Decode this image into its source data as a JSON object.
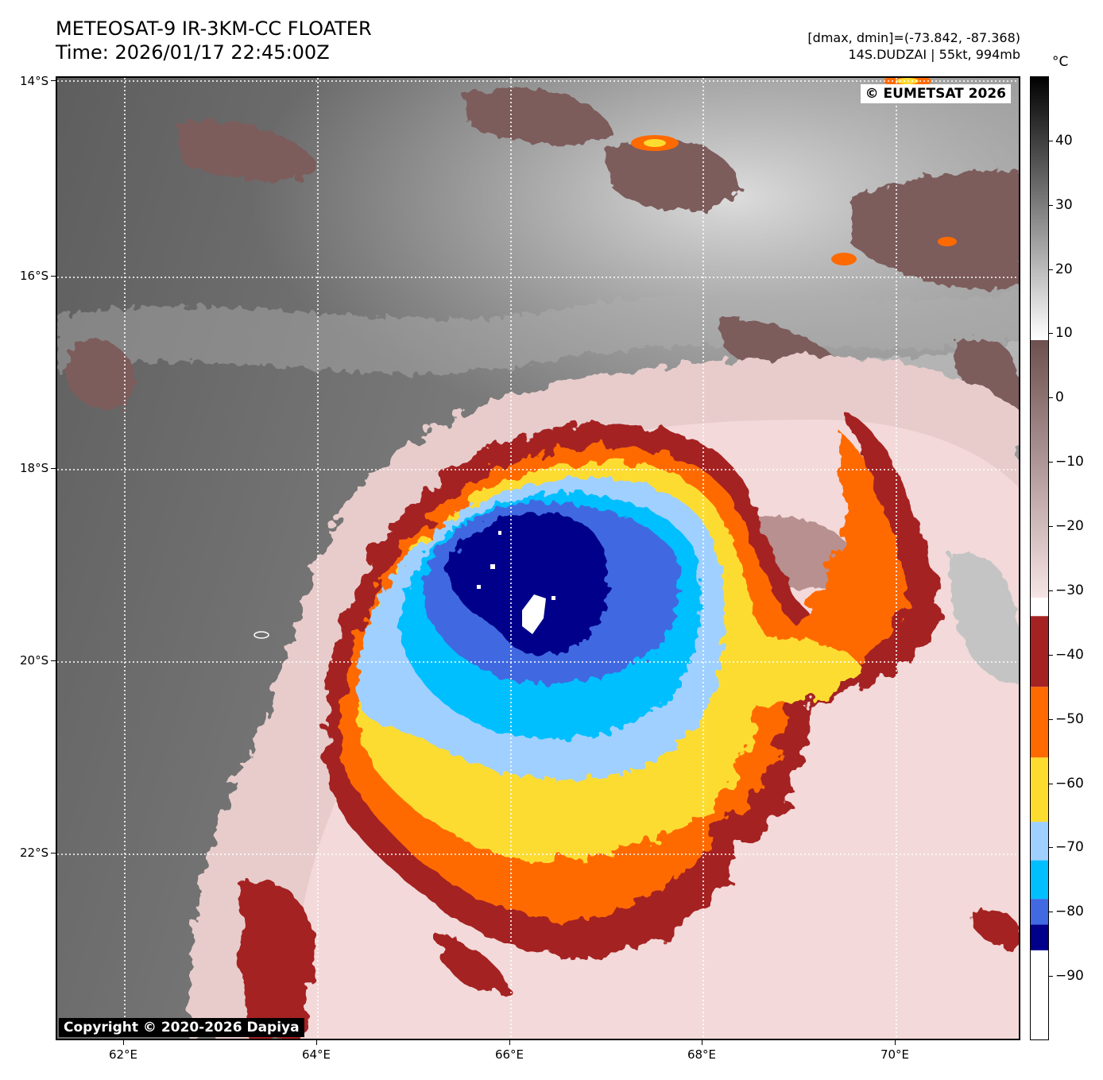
{
  "header": {
    "title": "METEOSAT-9 IR-3KM-CC FLOATER",
    "time": "Time: 2026/01/17 22:45:00Z",
    "range": "[dmax, dmin]=(-73.842, -87.368)",
    "storm": "14S.DUDZAI | 55kt, 994mb"
  },
  "map": {
    "eumetsat": "© EUMETSAT 2026",
    "copyright": "Copyright © 2020-2026 Dapiya",
    "lat_labels": [
      "14°S",
      "16°S",
      "18°S",
      "20°S",
      "22°S"
    ],
    "lon_labels": [
      "62°E",
      "64°E",
      "66°E",
      "68°E",
      "70°E"
    ],
    "lon_range": [
      61.3,
      71.3
    ],
    "lat_range": [
      -14.0,
      -24.0
    ]
  },
  "colorbar": {
    "unit": "°C",
    "labels": [
      "40",
      "30",
      "20",
      "10",
      "0",
      "−10",
      "−20",
      "−30",
      "−40",
      "−50",
      "−60",
      "−70",
      "−80",
      "−90"
    ],
    "value_range": [
      -100,
      50
    ],
    "stops": [
      {
        "from": -100,
        "to": -86,
        "color": "#ffffff"
      },
      {
        "from": -86,
        "to": -82,
        "color": "#00008b"
      },
      {
        "from": -82,
        "to": -78,
        "color": "#4169e1"
      },
      {
        "from": -78,
        "to": -72,
        "color": "#00bfff"
      },
      {
        "from": -72,
        "to": -66,
        "color": "#a0d0ff"
      },
      {
        "from": -66,
        "to": -56,
        "color": "#fddc30"
      },
      {
        "from": -56,
        "to": -45,
        "color": "#ff6a00"
      },
      {
        "from": -45,
        "to": -34,
        "color": "#a52222"
      }
    ]
  },
  "colors": {
    "grey_dark": "#555555",
    "grey_light": "#d0d0d0",
    "pink_light": "#f2d6d6",
    "brown": "#7a5a5a",
    "red": "#a52222",
    "orange": "#ff6a00",
    "yellow": "#fddc30",
    "light_blue": "#a0d0ff",
    "cyan": "#00bfff",
    "royal_blue": "#4169e1",
    "navy": "#00008b"
  }
}
